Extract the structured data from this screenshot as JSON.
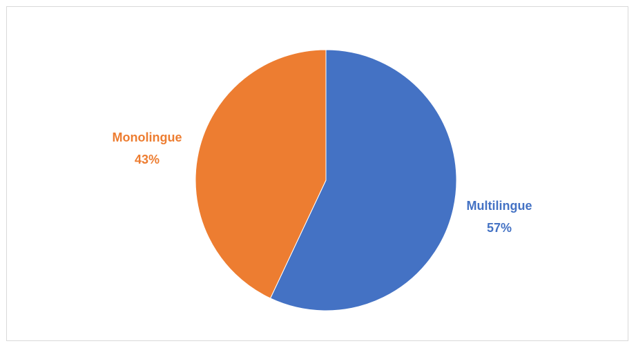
{
  "chart_data": {
    "type": "pie",
    "title": "",
    "categories": [
      "Multilingue",
      "Monolingue"
    ],
    "values": [
      57,
      43
    ],
    "value_labels": [
      "57%",
      "43%"
    ],
    "colors": [
      "#4472c4",
      "#ed7d31"
    ],
    "start_angle": "12 o'clock",
    "direction": "clockwise",
    "legend": "none",
    "data_labels": "outside, name and percentage"
  }
}
